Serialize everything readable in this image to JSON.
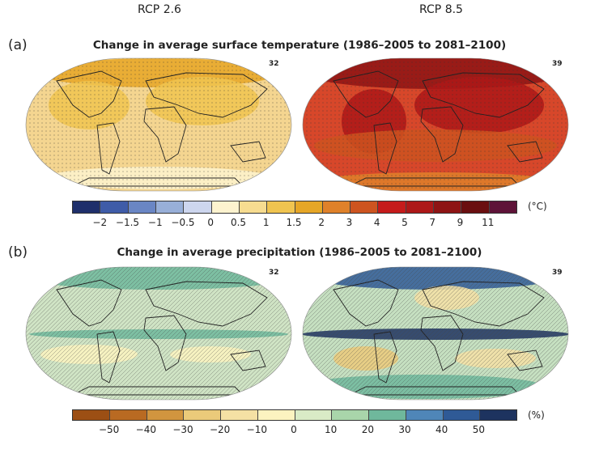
{
  "columns": [
    "RCP 2.6",
    "RCP 8.5"
  ],
  "panel_a": {
    "label": "(a)",
    "title": "Change in average surface temperature (1986–2005 to 2081–2100)",
    "counts": [
      "32",
      "39"
    ],
    "unit": "(°C)",
    "ticks": [
      "−2",
      "−1.5",
      "−1",
      "−0.5",
      "0",
      "0.5",
      "1",
      "1.5",
      "2",
      "3",
      "4",
      "5",
      "7",
      "9",
      "11"
    ],
    "colors": [
      "#1f2f6b",
      "#3f5ca8",
      "#6a86c4",
      "#98afd8",
      "#cdd6ee",
      "#fdf3cf",
      "#f7dc90",
      "#f0c450",
      "#e6a626",
      "#df812a",
      "#cd5420",
      "#c51b1b",
      "#ad1818",
      "#8e1414",
      "#6a0f10",
      "#5e1338"
    ]
  },
  "panel_b": {
    "label": "(b)",
    "title": "Change in average precipitation (1986–2005 to 2081–2100)",
    "counts": [
      "32",
      "39"
    ],
    "unit": "(%)",
    "ticks": [
      "−50",
      "−40",
      "−30",
      "−20",
      "−10",
      "0",
      "10",
      "20",
      "30",
      "40",
      "50"
    ],
    "colors": [
      "#9c4f14",
      "#b96a22",
      "#d1953f",
      "#ebca7a",
      "#f5e1a4",
      "#fcf3c0",
      "#d9ebc6",
      "#a9d5aa",
      "#6fb89c",
      "#4f86b8",
      "#2f5a96",
      "#1d335f"
    ]
  },
  "map_colors": {
    "a_left": "#f4d590",
    "a_right": "#d7472a",
    "b_left": "#cfe3c4",
    "b_right": "#c5dfc0"
  }
}
